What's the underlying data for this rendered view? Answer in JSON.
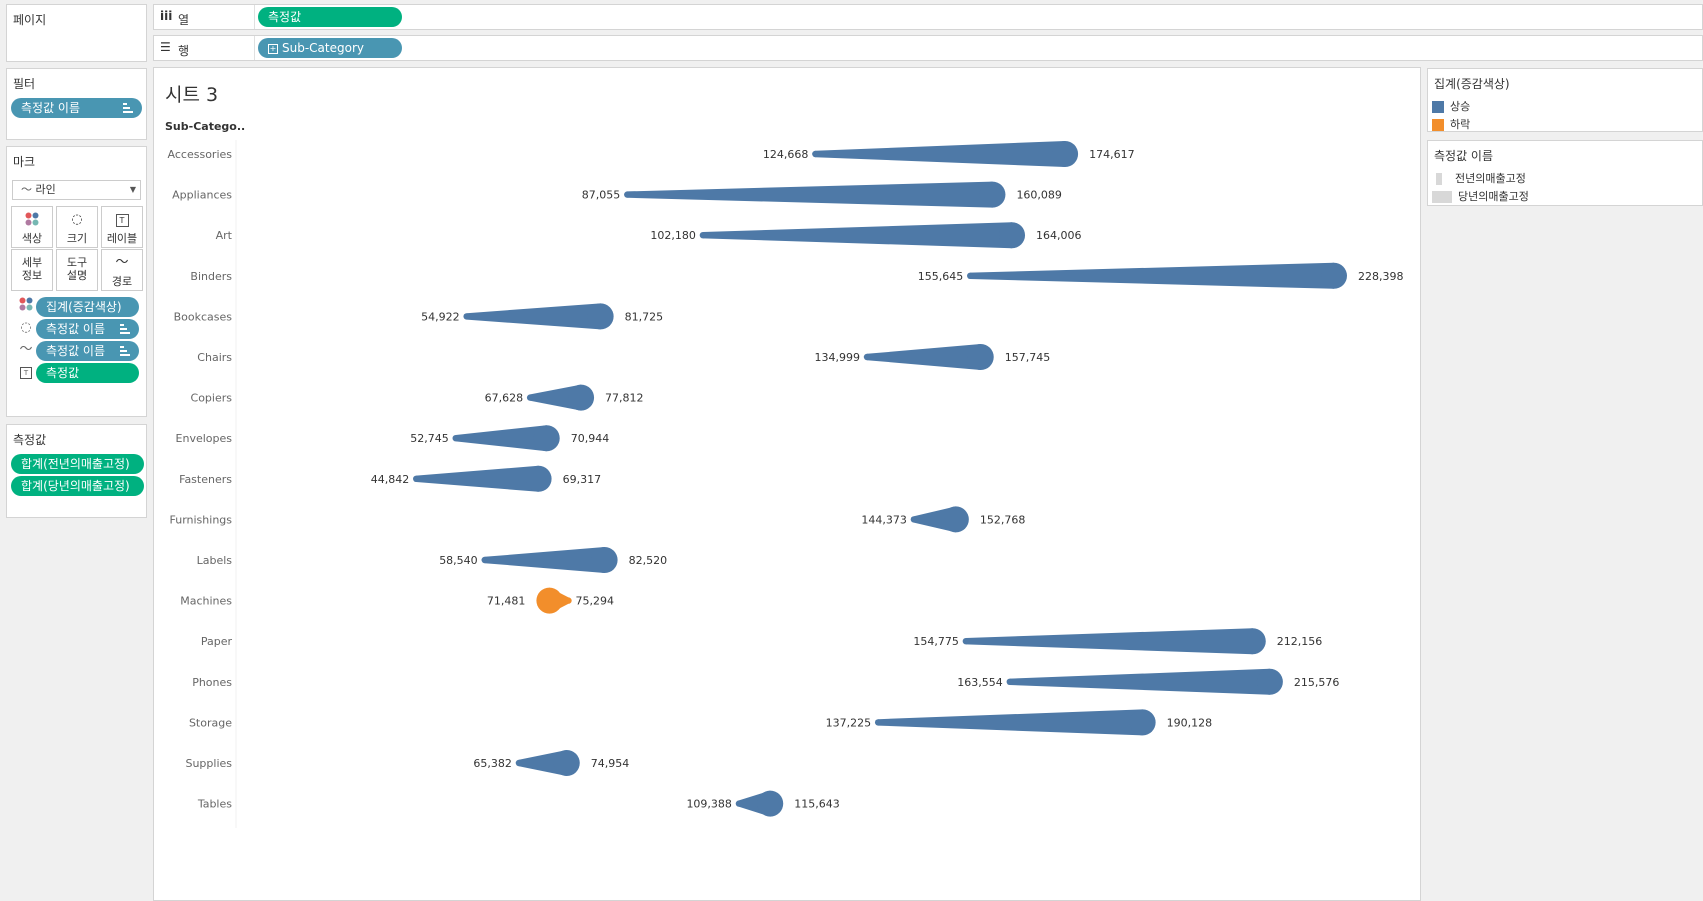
{
  "left": {
    "pages_title": "페이지",
    "filters_title": "필터",
    "filter_pill": "측정값 이름",
    "marks_title": "마크",
    "mark_type": "라인",
    "mark_buttons": {
      "color": "색상",
      "size": "크기",
      "label": "레이블",
      "detail_1": "세부",
      "detail_2": "정보",
      "tooltip_1": "도구",
      "tooltip_2": "설명",
      "path": "경로"
    },
    "mark_pills": {
      "color": "집계(증감색상)",
      "size": "측정값 이름",
      "path": "측정값 이름",
      "label": "측정값"
    },
    "measure_values_title": "측정값",
    "measure_pills": [
      "합계(전년의매출고정)",
      "합계(당년의매출고정)"
    ]
  },
  "shelves": {
    "columns_label": "열",
    "columns_pill": "측정값",
    "rows_label": "행",
    "rows_pill": "Sub-Category"
  },
  "sheet": {
    "title": "시트 3",
    "row_header": "Sub-Catego.."
  },
  "legend": {
    "color_title": "집계(증감색상)",
    "color_items": [
      {
        "label": "상승",
        "color": "#4e79a7"
      },
      {
        "label": "하락",
        "color": "#f28e2b"
      }
    ],
    "size_title": "측정값 이름",
    "size_items": [
      "전년의매출고정",
      "당년의매출고정"
    ]
  },
  "chart_data": {
    "type": "line",
    "title": "시트 3",
    "xlabel": "",
    "ylabel": "Sub-Catego..",
    "xlim": [
      0,
      240000
    ],
    "series": [
      {
        "name": "전년의매출고정"
      },
      {
        "name": "당년의매출고정"
      }
    ],
    "rows": [
      {
        "category": "Accessories",
        "prev": 124668,
        "curr": 174617,
        "prev_label": "124,668",
        "curr_label": "174,617",
        "trend": "상승"
      },
      {
        "category": "Appliances",
        "prev": 87055,
        "curr": 160089,
        "prev_label": "87,055",
        "curr_label": "160,089",
        "trend": "상승"
      },
      {
        "category": "Art",
        "prev": 102180,
        "curr": 164006,
        "prev_label": "102,180",
        "curr_label": "164,006",
        "trend": "상승"
      },
      {
        "category": "Binders",
        "prev": 155645,
        "curr": 228398,
        "prev_label": "155,645",
        "curr_label": "228,398",
        "trend": "상승"
      },
      {
        "category": "Bookcases",
        "prev": 54922,
        "curr": 81725,
        "prev_label": "54,922",
        "curr_label": "81,725",
        "trend": "상승"
      },
      {
        "category": "Chairs",
        "prev": 134999,
        "curr": 157745,
        "prev_label": "134,999",
        "curr_label": "157,745",
        "trend": "상승"
      },
      {
        "category": "Copiers",
        "prev": 67628,
        "curr": 77812,
        "prev_label": "67,628",
        "curr_label": "77,812",
        "trend": "상승"
      },
      {
        "category": "Envelopes",
        "prev": 52745,
        "curr": 70944,
        "prev_label": "52,745",
        "curr_label": "70,944",
        "trend": "상승"
      },
      {
        "category": "Fasteners",
        "prev": 44842,
        "curr": 69317,
        "prev_label": "44,842",
        "curr_label": "69,317",
        "trend": "상승"
      },
      {
        "category": "Furnishings",
        "prev": 144373,
        "curr": 152768,
        "prev_label": "144,373",
        "curr_label": "152,768",
        "trend": "상승"
      },
      {
        "category": "Labels",
        "prev": 58540,
        "curr": 82520,
        "prev_label": "58,540",
        "curr_label": "82,520",
        "trend": "상승"
      },
      {
        "category": "Machines",
        "prev": 75294,
        "curr": 71481,
        "prev_label": "75,294",
        "curr_label": "71,481",
        "trend": "하락"
      },
      {
        "category": "Paper",
        "prev": 154775,
        "curr": 212156,
        "prev_label": "154,775",
        "curr_label": "212,156",
        "trend": "상승"
      },
      {
        "category": "Phones",
        "prev": 163554,
        "curr": 215576,
        "prev_label": "163,554",
        "curr_label": "215,576",
        "trend": "상승"
      },
      {
        "category": "Storage",
        "prev": 137225,
        "curr": 190128,
        "prev_label": "137,225",
        "curr_label": "190,128",
        "trend": "상승"
      },
      {
        "category": "Supplies",
        "prev": 65382,
        "curr": 74954,
        "prev_label": "65,382",
        "curr_label": "74,954",
        "trend": "상승"
      },
      {
        "category": "Tables",
        "prev": 109388,
        "curr": 115643,
        "prev_label": "109,388",
        "curr_label": "115,643",
        "trend": "상승"
      }
    ]
  }
}
